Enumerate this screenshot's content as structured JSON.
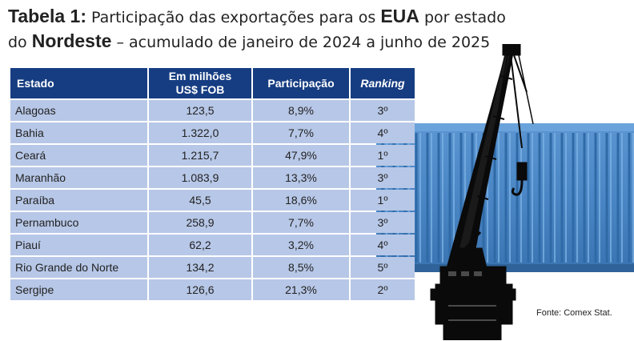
{
  "title": {
    "label": "Tabela 1:",
    "part1": "Participação das exportações para os",
    "country": "EUA",
    "part2": "por estado",
    "line2_prefix": "do",
    "region": "Nordeste",
    "line2_rest": "– acumulado de janeiro de 2024 a junho de 2025"
  },
  "table": {
    "headers": {
      "estado": "Estado",
      "valor_line1": "Em milhões",
      "valor_line2": "US$ FOB",
      "participacao": "Participação",
      "ranking": "Ranking"
    },
    "rows": [
      {
        "estado": "Alagoas",
        "valor": "123,5",
        "participacao": "8,9%",
        "ranking": "3º"
      },
      {
        "estado": "Bahia",
        "valor": "1.322,0",
        "participacao": "7,7%",
        "ranking": "4º"
      },
      {
        "estado": "Ceará",
        "valor": "1.215,7",
        "participacao": "47,9%",
        "ranking": "1º"
      },
      {
        "estado": "Maranhão",
        "valor": "1.083,9",
        "participacao": "13,3%",
        "ranking": "3º"
      },
      {
        "estado": "Paraíba",
        "valor": "45,5",
        "participacao": "18,6%",
        "ranking": "1º"
      },
      {
        "estado": "Pernambuco",
        "valor": "258,9",
        "participacao": "7,7%",
        "ranking": "3º"
      },
      {
        "estado": "Piauí",
        "valor": "62,2",
        "participacao": "3,2%",
        "ranking": "4º"
      },
      {
        "estado": "Rio Grande do Norte",
        "valor": "134,2",
        "participacao": "8,5%",
        "ranking": "5º"
      },
      {
        "estado": "Sergipe",
        "valor": "126,6",
        "participacao": "21,3%",
        "ranking": "2º"
      }
    ]
  },
  "source": "Fonte: Comex Stat.",
  "colors": {
    "header_bg": "#163d82",
    "cell_bg": "#b7c7e7",
    "container": "#4a86c5",
    "crane": "#0a0a0a"
  },
  "illustration": {
    "container": "shipping-container-icon",
    "crane": "port-crane-icon"
  }
}
